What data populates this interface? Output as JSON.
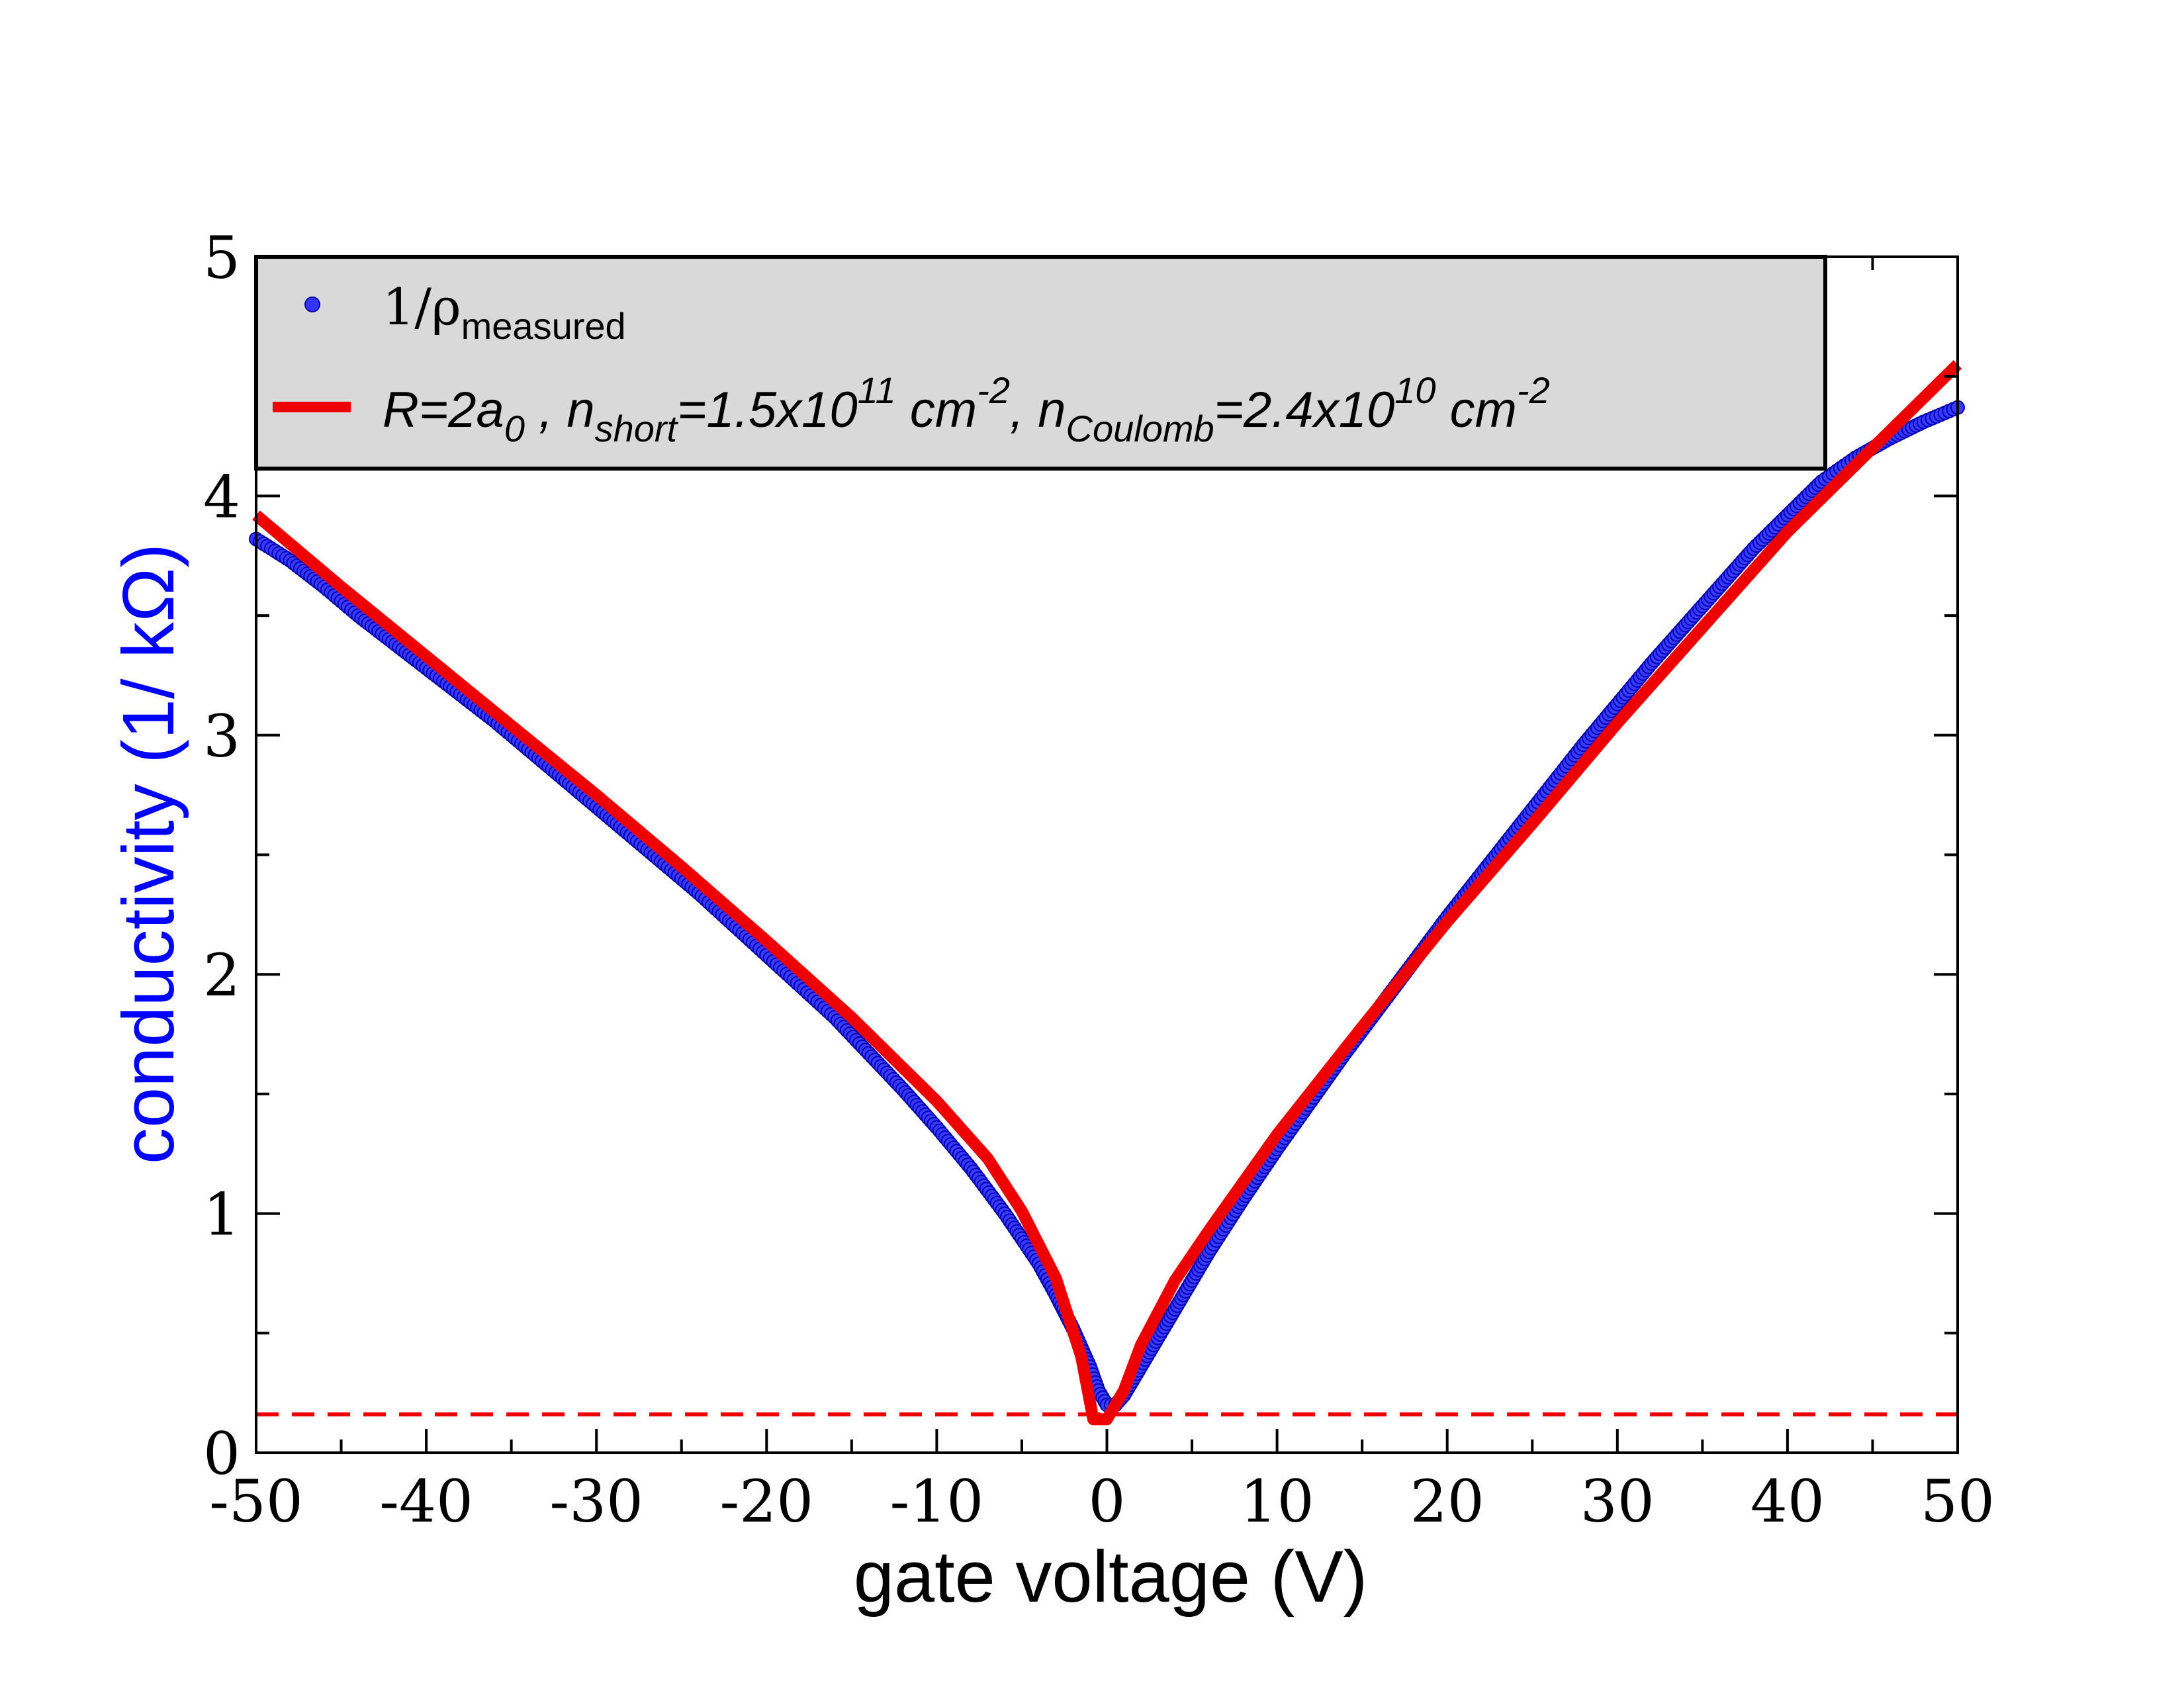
{
  "chart_data": {
    "type": "scatter",
    "title": "",
    "xlabel": "gate voltage (V)",
    "ylabel": "conductivity (1/ kΩ)",
    "xlim": [
      -50,
      50
    ],
    "ylim": [
      0,
      5
    ],
    "xticks": [
      -50,
      -40,
      -30,
      -20,
      -10,
      0,
      10,
      20,
      30,
      40,
      50
    ],
    "xtick_labels": [
      "-50",
      "-40",
      "-30",
      "-20",
      "-10",
      "0",
      "10",
      "20",
      "30",
      "40",
      "50"
    ],
    "yticks": [
      0,
      1,
      2,
      3,
      4,
      5
    ],
    "ytick_labels": [
      "0",
      "1",
      "2",
      "3",
      "4",
      "5"
    ],
    "grid": false,
    "legend_position": "top-left",
    "colors": {
      "measured": "#1515e0",
      "fit": "#ee0000",
      "baseline": "#ee0000",
      "legend_bg": "#d9d9d9",
      "ylabel": "#0000ff"
    },
    "series": [
      {
        "name": "measured",
        "kind": "markers",
        "legend_main": "1/ρ",
        "legend_sub": "measured",
        "points": [
          [
            -50,
            3.82
          ],
          [
            -48,
            3.73
          ],
          [
            -46,
            3.62
          ],
          [
            -44,
            3.5
          ],
          [
            -42,
            3.39
          ],
          [
            -40,
            3.28
          ],
          [
            -38,
            3.17
          ],
          [
            -36,
            3.06
          ],
          [
            -34,
            2.94
          ],
          [
            -32,
            2.82
          ],
          [
            -30,
            2.7
          ],
          [
            -28,
            2.58
          ],
          [
            -26,
            2.46
          ],
          [
            -24,
            2.34
          ],
          [
            -22,
            2.21
          ],
          [
            -20,
            2.08
          ],
          [
            -18,
            1.95
          ],
          [
            -16,
            1.82
          ],
          [
            -14,
            1.67
          ],
          [
            -12,
            1.52
          ],
          [
            -10,
            1.36
          ],
          [
            -8,
            1.19
          ],
          [
            -6,
            1.0
          ],
          [
            -4,
            0.79
          ],
          [
            -3,
            0.66
          ],
          [
            -2,
            0.52
          ],
          [
            -1,
            0.36
          ],
          [
            -0.5,
            0.26
          ],
          [
            0,
            0.2
          ],
          [
            0.5,
            0.2
          ],
          [
            1,
            0.24
          ],
          [
            2,
            0.36
          ],
          [
            3,
            0.48
          ],
          [
            4,
            0.6
          ],
          [
            5,
            0.72
          ],
          [
            6,
            0.84
          ],
          [
            8,
            1.06
          ],
          [
            10,
            1.27
          ],
          [
            12,
            1.47
          ],
          [
            14,
            1.67
          ],
          [
            16,
            1.86
          ],
          [
            18,
            2.05
          ],
          [
            20,
            2.24
          ],
          [
            22,
            2.42
          ],
          [
            24,
            2.6
          ],
          [
            26,
            2.78
          ],
          [
            28,
            2.96
          ],
          [
            30,
            3.13
          ],
          [
            32,
            3.3
          ],
          [
            34,
            3.46
          ],
          [
            36,
            3.62
          ],
          [
            38,
            3.78
          ],
          [
            40,
            3.92
          ],
          [
            42,
            4.06
          ],
          [
            44,
            4.16
          ],
          [
            46,
            4.24
          ],
          [
            48,
            4.31
          ],
          [
            50,
            4.37
          ]
        ]
      },
      {
        "name": "fit",
        "kind": "line",
        "legend_text": "R=2a",
        "legend_parts": {
          "r_sub": "0",
          "sep1": " , n",
          "short_sub": "short",
          "short_val": "=1.5x10",
          "short_exp": "11",
          "unit1": " cm",
          "unit1_exp": "-2",
          "sep2": ", n",
          "coul_sub": "Coulomb",
          "coul_val": "=2.4x10",
          "coul_exp": "10",
          "unit2": " cm",
          "unit2_exp": "-2"
        },
        "points": [
          [
            -50,
            3.92
          ],
          [
            -45,
            3.62
          ],
          [
            -40,
            3.33
          ],
          [
            -35,
            3.04
          ],
          [
            -30,
            2.75
          ],
          [
            -25,
            2.45
          ],
          [
            -20,
            2.14
          ],
          [
            -15,
            1.82
          ],
          [
            -10,
            1.47
          ],
          [
            -7,
            1.23
          ],
          [
            -5,
            1.01
          ],
          [
            -3,
            0.73
          ],
          [
            -1.5,
            0.4
          ],
          [
            -0.8,
            0.14
          ],
          [
            0,
            0.14
          ],
          [
            1,
            0.26
          ],
          [
            2,
            0.45
          ],
          [
            4,
            0.72
          ],
          [
            6,
            0.93
          ],
          [
            8,
            1.13
          ],
          [
            10,
            1.33
          ],
          [
            12,
            1.51
          ],
          [
            15,
            1.78
          ],
          [
            20,
            2.22
          ],
          [
            25,
            2.63
          ],
          [
            30,
            3.05
          ],
          [
            35,
            3.45
          ],
          [
            40,
            3.85
          ],
          [
            45,
            4.2
          ],
          [
            50,
            4.55
          ]
        ]
      },
      {
        "name": "baseline",
        "kind": "dashed-line",
        "points": [
          [
            -50,
            0.16
          ],
          [
            50,
            0.16
          ]
        ]
      }
    ]
  }
}
